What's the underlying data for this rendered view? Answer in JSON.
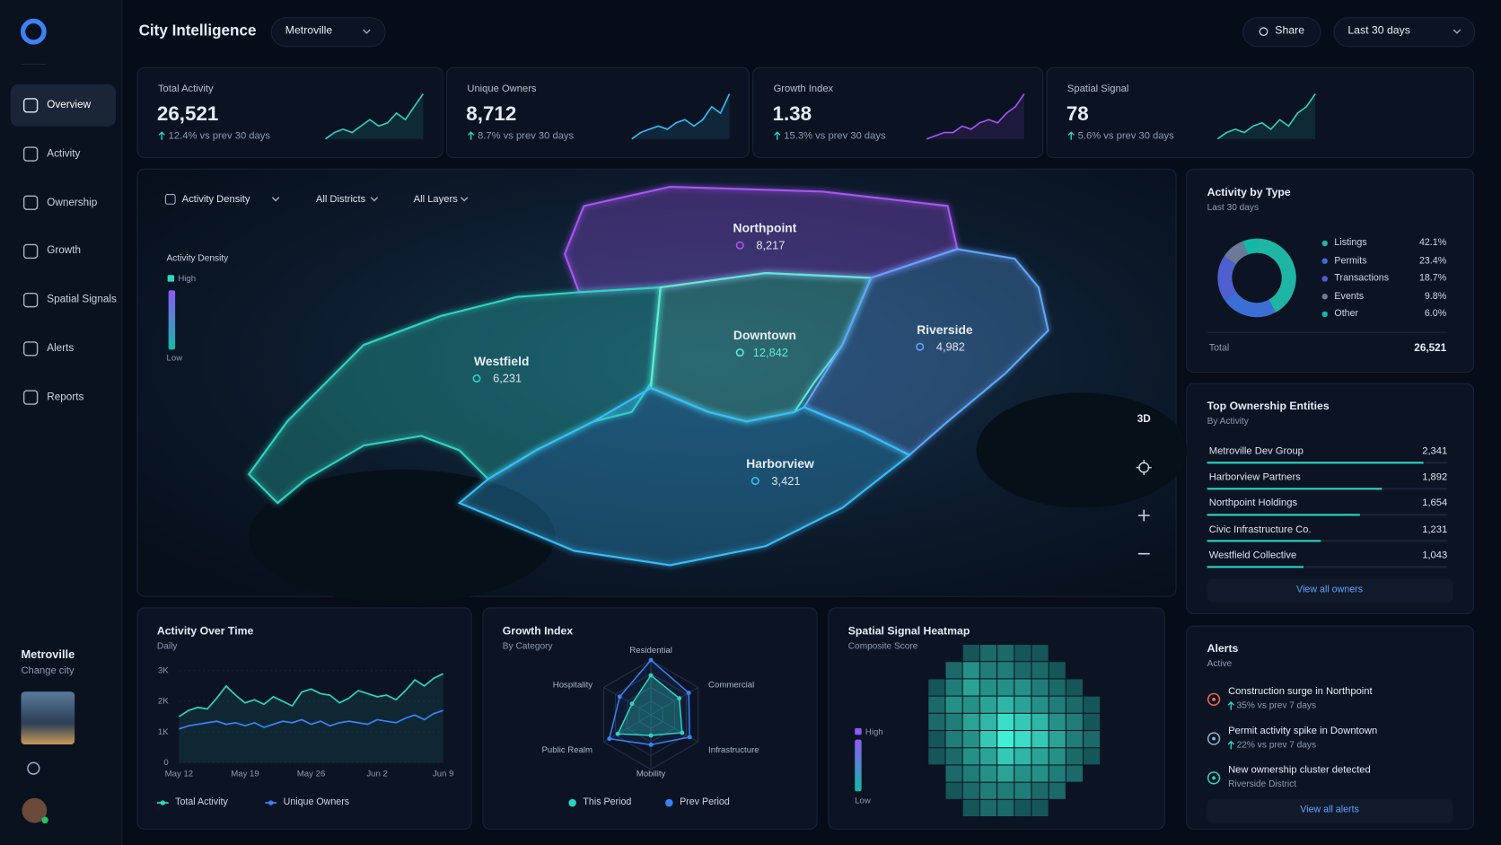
{
  "app": {
    "title": "City Intelligence",
    "city_select": "Metroville",
    "share": "Share",
    "range": "Last 30 days"
  },
  "nav": [
    {
      "label": "Overview",
      "active": true
    },
    {
      "label": "Activity"
    },
    {
      "label": "Ownership"
    },
    {
      "label": "Growth"
    },
    {
      "label": "Spatial Signals"
    },
    {
      "label": "Alerts"
    },
    {
      "label": "Reports"
    }
  ],
  "sidebar": {
    "city": "Metroville",
    "action": "Change city"
  },
  "kpis": [
    {
      "label": "Total Activity",
      "value": "26,521",
      "change": "12.4% vs prev 30 days",
      "color": "#2dd4bf",
      "spark": [
        3,
        4,
        4.5,
        4,
        5,
        6,
        5,
        5.5,
        7,
        6,
        8,
        10
      ]
    },
    {
      "label": "Unique Owners",
      "value": "8,712",
      "change": "8.7% vs prev 30 days",
      "color": "#38bdf8",
      "spark": [
        3,
        4,
        4.5,
        5,
        4.5,
        5.5,
        6,
        5,
        6,
        8,
        7,
        10
      ]
    },
    {
      "label": "Growth Index",
      "value": "1.38",
      "change": "15.3% vs prev 30 days",
      "color": "#a855f7",
      "spark": [
        3,
        3.5,
        4,
        4,
        5,
        4.5,
        5.5,
        6,
        5.5,
        7,
        8,
        10
      ]
    },
    {
      "label": "Spatial Signal",
      "value": "78",
      "change": "5.6% vs prev 30 days",
      "color": "#2dd4bf",
      "spark": [
        3,
        4,
        4.5,
        4,
        5,
        5.5,
        4.5,
        6,
        5,
        7,
        8,
        10
      ]
    }
  ],
  "map": {
    "filters": [
      "Activity Density",
      "All Districts",
      "All Layers"
    ],
    "legend": {
      "title": "Activity Density",
      "high": "High",
      "low": "Low"
    },
    "view_button": "3D",
    "districts": [
      {
        "name": "Northpoint",
        "value": "8,217",
        "color": "#a855f7"
      },
      {
        "name": "Westfield",
        "value": "6,231",
        "color": "#2dd4bf"
      },
      {
        "name": "Downtown",
        "value": "12,842",
        "color": "#5eead4"
      },
      {
        "name": "Riverside",
        "value": "4,982",
        "color": "#60a5fa"
      },
      {
        "name": "Harborview",
        "value": "3,421",
        "color": "#38bdf8"
      }
    ]
  },
  "activity_by_type": {
    "type": "donut",
    "title": "Activity by Type",
    "subtitle": "Last 30 days",
    "categories": [
      "Listings",
      "Permits",
      "Transactions",
      "Events",
      "Other"
    ],
    "values": [
      42.1,
      23.4,
      18.7,
      9.8,
      6.0
    ],
    "value_labels": [
      "42.1%",
      "23.4%",
      "18.7%",
      "9.8%",
      "6.0%"
    ],
    "colors": [
      "#1fb5a5",
      "#3b6fd6",
      "#4f5fd0",
      "#6b7a99",
      "#14b8a6"
    ],
    "total_label": "Total",
    "total": "26,521"
  },
  "top_owners": {
    "type": "bar",
    "title": "Top Ownership Entities",
    "subtitle": "By Activity",
    "categories": [
      "Metroville Dev Group",
      "Harborview Partners",
      "Northpoint Holdings",
      "Civic Infrastructure Co.",
      "Westfield Collective"
    ],
    "values": [
      2341,
      1892,
      1654,
      1231,
      1043
    ],
    "value_labels": [
      "2,341",
      "1,892",
      "1,654",
      "1,231",
      "1,043"
    ],
    "xlim": [
      0,
      2600
    ],
    "color": "#2dd4bf",
    "action": "View all owners"
  },
  "alerts": {
    "title": "Alerts",
    "subtitle": "Active",
    "items": [
      {
        "title": "Construction surge in Northpoint",
        "detail": "35% vs prev 7 days",
        "color": "#f26b4f",
        "trend": "up"
      },
      {
        "title": "Permit activity spike in Downtown",
        "detail": "22% vs prev 7 days",
        "color": "#8fb3c9",
        "trend": "up"
      },
      {
        "title": "New ownership cluster detected",
        "detail": "Riverside District",
        "color": "#2dd4bf"
      }
    ],
    "action": "View all alerts"
  },
  "activity_over_time": {
    "type": "line",
    "title": "Activity Over Time",
    "subtitle": "Daily",
    "categories": [
      "May 12",
      null,
      null,
      null,
      null,
      null,
      null,
      "May 19",
      null,
      null,
      null,
      null,
      null,
      null,
      "May 26",
      null,
      null,
      null,
      null,
      null,
      null,
      "Jun 2",
      null,
      null,
      null,
      null,
      null,
      null,
      "Jun 9"
    ],
    "ylim": [
      0,
      3000
    ],
    "yticks": [
      0,
      {
        "value": 1000,
        "label": "1K"
      },
      {
        "value": 2000,
        "label": "2K"
      },
      {
        "value": 3000,
        "label": "3K"
      }
    ],
    "series": [
      {
        "name": "Total Activity",
        "color": "#2dd4bf",
        "values": [
          1500,
          1700,
          1800,
          1750,
          2100,
          2500,
          2200,
          1950,
          2050,
          1900,
          2150,
          2000,
          1850,
          2300,
          2400,
          2250,
          2200,
          1950,
          2100,
          2350,
          2250,
          2150,
          2200,
          2050,
          2350,
          2700,
          2500,
          2750,
          2900
        ]
      },
      {
        "name": "Unique Owners",
        "color": "#3b82f6",
        "values": [
          1100,
          1200,
          1250,
          1300,
          1350,
          1250,
          1300,
          1200,
          1300,
          1150,
          1250,
          1350,
          1300,
          1400,
          1250,
          1350,
          1200,
          1300,
          1350,
          1300,
          1250,
          1400,
          1350,
          1300,
          1450,
          1550,
          1400,
          1600,
          1700
        ]
      }
    ]
  },
  "growth_index": {
    "type": "radar",
    "title": "Growth Index",
    "subtitle": "By Category",
    "categories": [
      "Residential",
      "Commercial",
      "Infrastructure",
      "Mobility",
      "Public Realm",
      "Hospitality"
    ],
    "rlim": [
      0,
      100
    ],
    "series": [
      {
        "name": "This Period",
        "color": "#2dd4bf",
        "values": [
          72,
          60,
          66,
          38,
          70,
          40
        ]
      },
      {
        "name": "Prev Period",
        "color": "#3b82f6",
        "values": [
          100,
          80,
          82,
          55,
          88,
          66
        ]
      }
    ]
  },
  "spatial_heatmap": {
    "type": "heatmap",
    "title": "Spatial Signal Heatmap",
    "subtitle": "Composite Score",
    "zlim": [
      0,
      1
    ],
    "legend": {
      "high": "High",
      "low": "Low"
    },
    "values": [
      [
        null,
        null,
        0.2,
        0.3,
        0.3,
        0.2,
        0.2,
        null,
        null,
        null
      ],
      [
        null,
        0.3,
        0.5,
        0.4,
        0.4,
        0.3,
        0.3,
        0.2,
        null,
        null
      ],
      [
        0.2,
        0.4,
        0.6,
        0.5,
        0.5,
        0.5,
        0.4,
        0.3,
        0.2,
        null
      ],
      [
        0.3,
        0.5,
        0.5,
        0.6,
        0.7,
        0.6,
        0.5,
        0.4,
        0.3,
        0.2
      ],
      [
        0.3,
        0.4,
        0.6,
        0.7,
        0.9,
        0.8,
        0.7,
        0.5,
        0.4,
        0.2
      ],
      [
        0.2,
        0.4,
        0.5,
        0.8,
        1.0,
        0.9,
        0.8,
        0.6,
        0.4,
        0.3
      ],
      [
        0.2,
        0.3,
        0.5,
        0.6,
        0.8,
        0.7,
        0.6,
        0.5,
        0.3,
        0.2
      ],
      [
        null,
        0.3,
        0.4,
        0.5,
        0.6,
        0.5,
        0.5,
        0.4,
        0.3,
        null
      ],
      [
        null,
        0.2,
        0.3,
        0.4,
        0.4,
        0.4,
        0.3,
        0.3,
        null,
        null
      ],
      [
        null,
        null,
        0.2,
        0.3,
        0.3,
        0.2,
        0.2,
        null,
        null,
        null
      ]
    ]
  }
}
